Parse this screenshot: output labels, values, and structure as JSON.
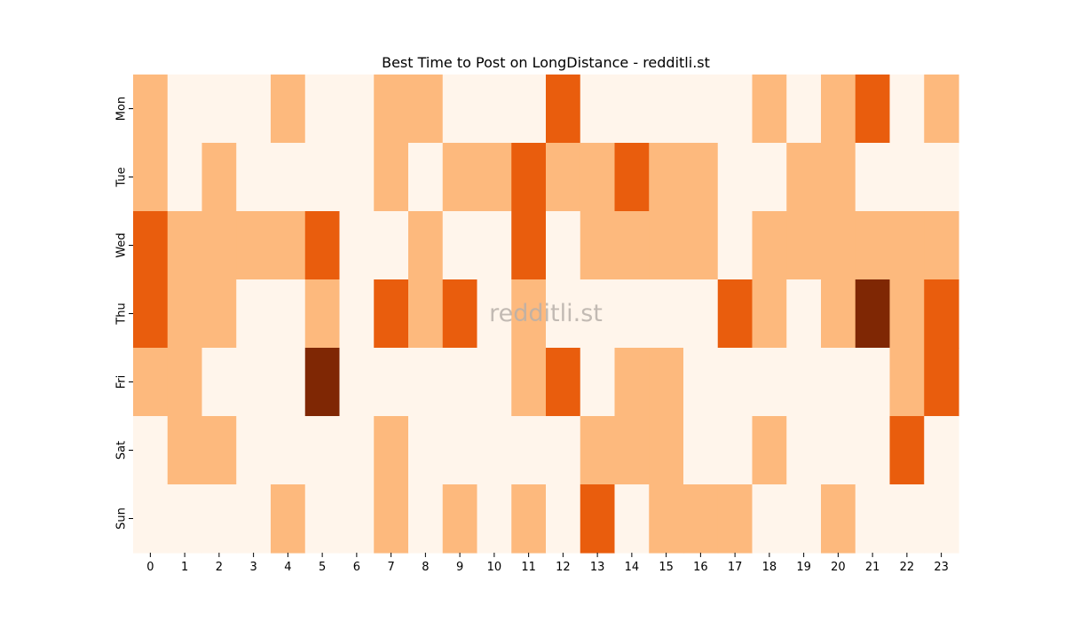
{
  "chart_data": {
    "type": "heatmap",
    "title": "Best Time to Post on LongDistance - redditli.st",
    "watermark": "redditli.st",
    "xlabel": "",
    "ylabel": "",
    "x": [
      "0",
      "1",
      "2",
      "3",
      "4",
      "5",
      "6",
      "7",
      "8",
      "9",
      "10",
      "11",
      "12",
      "13",
      "14",
      "15",
      "16",
      "17",
      "18",
      "19",
      "20",
      "21",
      "22",
      "23"
    ],
    "y": [
      "Mon",
      "Tue",
      "Wed",
      "Thu",
      "Fri",
      "Sat",
      "Sun"
    ],
    "levels": 4,
    "colors": [
      "#fff5eb",
      "#fdb97d",
      "#e95d0d",
      "#7f2704"
    ],
    "values": [
      [
        1,
        0,
        0,
        0,
        1,
        0,
        0,
        1,
        1,
        0,
        0,
        0,
        2,
        0,
        0,
        0,
        0,
        0,
        1,
        0,
        1,
        2,
        0,
        1
      ],
      [
        1,
        0,
        1,
        0,
        0,
        0,
        0,
        1,
        0,
        1,
        1,
        2,
        1,
        1,
        2,
        1,
        1,
        0,
        0,
        1,
        1,
        0,
        0,
        0
      ],
      [
        2,
        1,
        1,
        1,
        1,
        2,
        0,
        0,
        1,
        0,
        0,
        2,
        0,
        1,
        1,
        1,
        1,
        0,
        1,
        1,
        1,
        1,
        1,
        1
      ],
      [
        2,
        1,
        1,
        0,
        0,
        1,
        0,
        2,
        1,
        2,
        0,
        1,
        0,
        0,
        0,
        0,
        0,
        2,
        1,
        0,
        1,
        3,
        1,
        2
      ],
      [
        1,
        1,
        0,
        0,
        0,
        3,
        0,
        0,
        0,
        0,
        0,
        1,
        2,
        0,
        1,
        1,
        0,
        0,
        0,
        0,
        0,
        0,
        1,
        2
      ],
      [
        0,
        1,
        1,
        0,
        0,
        0,
        0,
        1,
        0,
        0,
        0,
        0,
        0,
        1,
        1,
        1,
        0,
        0,
        1,
        0,
        0,
        0,
        2,
        0
      ],
      [
        0,
        0,
        0,
        0,
        1,
        0,
        0,
        1,
        0,
        1,
        0,
        1,
        0,
        2,
        0,
        1,
        1,
        1,
        0,
        0,
        1,
        0,
        0,
        0
      ]
    ]
  }
}
